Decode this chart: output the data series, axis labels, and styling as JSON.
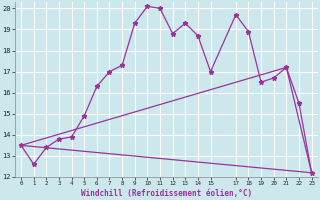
{
  "xlabel": "Windchill (Refroidissement éolien,°C)",
  "background_color": "#cce8ec",
  "grid_color": "#ffffff",
  "line_color": "#993399",
  "xlim": [
    -0.5,
    23.5
  ],
  "ylim": [
    12,
    20.3
  ],
  "yticks": [
    12,
    13,
    14,
    15,
    16,
    17,
    18,
    19,
    20
  ],
  "xticks": [
    0,
    1,
    2,
    3,
    4,
    5,
    6,
    7,
    8,
    9,
    10,
    11,
    12,
    13,
    14,
    15,
    17,
    18,
    19,
    20,
    21,
    22,
    23
  ],
  "xticklabels": [
    "0",
    "1",
    "2",
    "3",
    "4",
    "5",
    "6",
    "7",
    "8",
    "9",
    "10",
    "11",
    "12",
    "13",
    "14",
    "15",
    "17",
    "18",
    "19",
    "20",
    "21",
    "22",
    "23"
  ],
  "series1_x": [
    0,
    1,
    2,
    3,
    4,
    5,
    6,
    7,
    8,
    9,
    10,
    11,
    12,
    13,
    14,
    15,
    17,
    18,
    19,
    20,
    21,
    22,
    23
  ],
  "series1_y": [
    13.5,
    12.6,
    13.4,
    13.8,
    13.9,
    14.9,
    16.3,
    17.0,
    17.3,
    19.3,
    20.1,
    20.0,
    18.8,
    19.3,
    18.7,
    17.0,
    19.7,
    18.9,
    16.5,
    16.7,
    17.2,
    15.5,
    12.2
  ],
  "series2_x": [
    0,
    23
  ],
  "series2_y": [
    13.5,
    12.2
  ],
  "series3_x": [
    0,
    21,
    23
  ],
  "series3_y": [
    13.5,
    17.2,
    12.2
  ]
}
